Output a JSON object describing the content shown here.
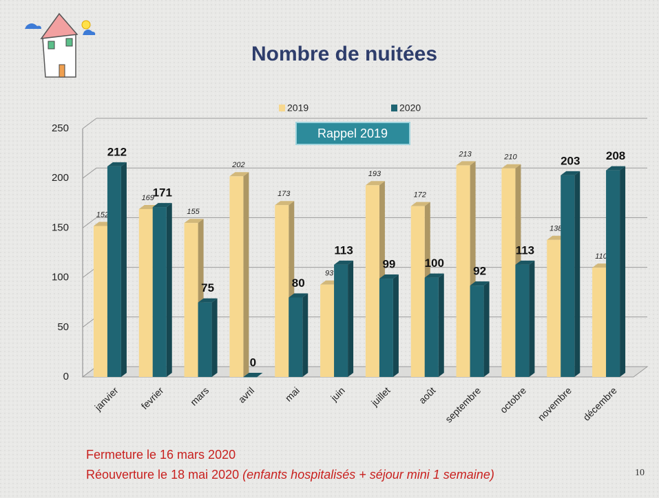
{
  "chart_data": {
    "type": "bar",
    "title": "Nombre de nuitées",
    "categories": [
      "janvier",
      "fevrier",
      "mars",
      "avril",
      "mai",
      "juin",
      "juillet",
      "août",
      "septembre",
      "octobre",
      "novembre",
      "décembre"
    ],
    "series": [
      {
        "name": "2019",
        "color": "#f7d88f",
        "values": [
          152,
          169,
          155,
          202,
          173,
          93,
          193,
          172,
          213,
          210,
          138,
          110
        ]
      },
      {
        "name": "2020",
        "color": "#1f6573",
        "values": [
          212,
          171,
          75,
          0,
          80,
          113,
          99,
          100,
          92,
          113,
          203,
          208
        ]
      }
    ],
    "ylim": [
      0,
      250
    ],
    "yticks": [
      0,
      50,
      100,
      150,
      200,
      250
    ],
    "grid": true,
    "legend": "top",
    "annotation": "Rappel 2019",
    "note1": "Fermeture le 16 mars 2020",
    "note2": "Réouverture le 18 mai 2020 ",
    "note2_italic": "(enfants hospitalisés + séjour mini 1 semaine)",
    "page_number": "10"
  }
}
